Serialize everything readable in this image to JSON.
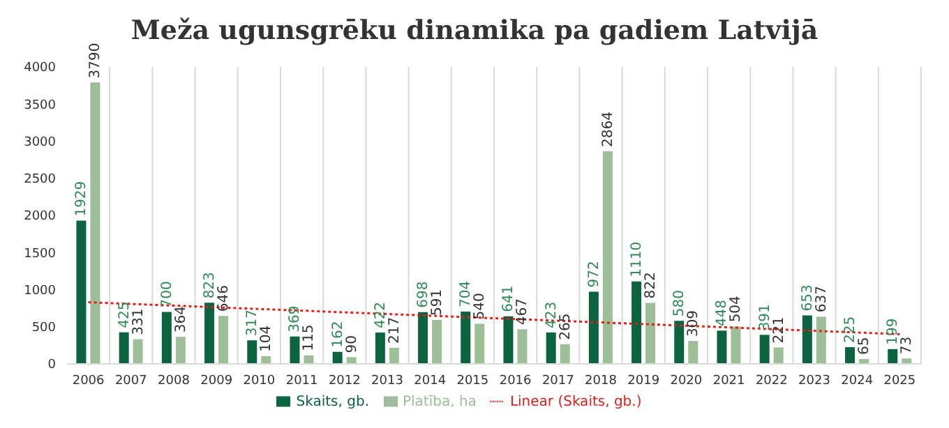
{
  "chart_data": {
    "type": "bar",
    "title": "Meža ugunsgrēku dinamika pa gadiem Latvijā",
    "categories": [
      "2006",
      "2007",
      "2008",
      "2009",
      "2010",
      "2011",
      "2012",
      "2013",
      "2014",
      "2015",
      "2016",
      "2017",
      "2018",
      "2019",
      "2020",
      "2021",
      "2022",
      "2023",
      "2024",
      "2025"
    ],
    "series": [
      {
        "name": "Skaits, gb.",
        "color": "#0b6340",
        "values": [
          1929,
          425,
          700,
          823,
          317,
          369,
          162,
          422,
          698,
          704,
          641,
          423,
          972,
          1110,
          580,
          448,
          391,
          653,
          225,
          199
        ],
        "value_labels": [
          "1929",
          "425",
          "700",
          "823",
          "317",
          "369",
          "162",
          "422",
          "698",
          "704",
          "641",
          "423",
          "972",
          "1110",
          "580",
          "448",
          "391",
          "653",
          "225",
          "199"
        ]
      },
      {
        "name": "Platība, ha",
        "color": "#9dbf98",
        "values": [
          3790,
          331,
          364,
          646,
          104,
          115,
          90,
          217,
          591,
          540,
          467,
          265,
          2864,
          822,
          309,
          504,
          221,
          637,
          65,
          73
        ],
        "value_labels": [
          "3790",
          "331",
          "364",
          "646",
          "104",
          "115",
          "90",
          "217",
          "591",
          "540",
          "467",
          "265",
          "2864",
          "822",
          "309",
          "504",
          "221",
          "637",
          "65",
          "73"
        ]
      },
      {
        "name": "Linear (Skaits, gb.)",
        "type": "line",
        "color": "#e0201b",
        "line_style": "dotted",
        "marker": "none",
        "values": [
          830,
          807,
          785,
          762,
          739,
          717,
          694,
          672,
          649,
          626,
          604,
          581,
          558,
          536,
          513,
          491,
          468,
          445,
          423,
          400
        ]
      }
    ],
    "ylim": [
      0,
      4000
    ],
    "yticks": [
      0,
      500,
      1000,
      1500,
      2000,
      2500,
      3000,
      3500,
      4000
    ],
    "grid": "x",
    "legend": "bottom"
  }
}
